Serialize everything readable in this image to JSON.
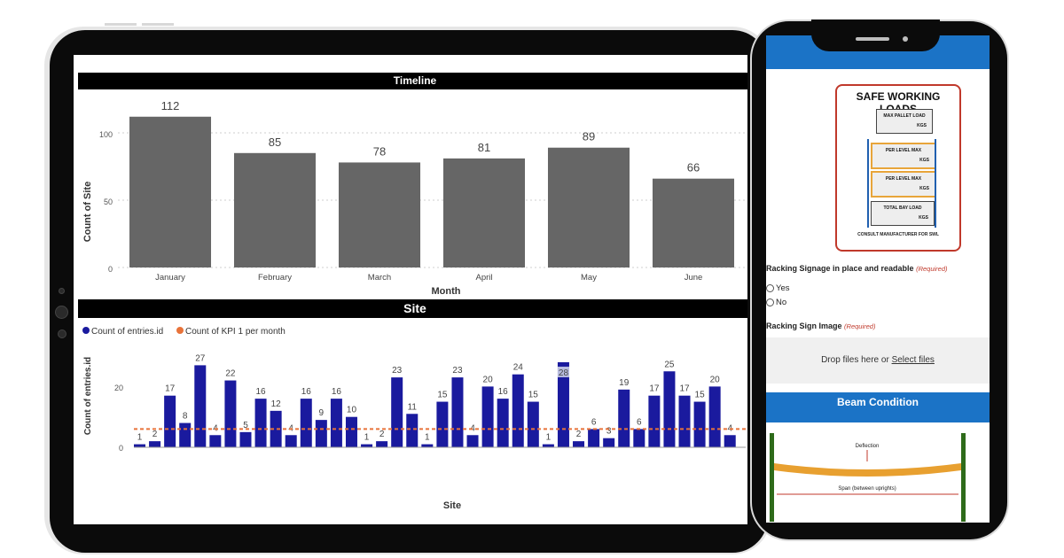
{
  "timeline": {
    "title": "Timeline",
    "xlabel": "Month",
    "ylabel": "Count of Site",
    "y_ticks": [
      "100",
      "50",
      "0"
    ]
  },
  "site": {
    "title": "Site",
    "legend": [
      "Count of entries.id",
      "Count of KPI 1 per month"
    ],
    "xlabel": "Site",
    "ylabel": "Count of entries.id",
    "y_ticks": [
      "20",
      "0"
    ]
  },
  "chart_data": [
    {
      "type": "bar",
      "title": "Timeline",
      "xlabel": "Month",
      "ylabel": "Count of Site",
      "categories": [
        "January",
        "February",
        "March",
        "April",
        "May",
        "June"
      ],
      "values": [
        112,
        85,
        78,
        81,
        89,
        66
      ],
      "ylim": [
        0,
        125
      ],
      "bar_color": "#666666",
      "grid": true
    },
    {
      "type": "bar",
      "title": "Site",
      "xlabel": "Site",
      "ylabel": "Count of entries.id",
      "legend_position": "top-left",
      "series": [
        {
          "name": "Count of entries.id",
          "color": "#1a1a9e",
          "values": [
            1,
            2,
            17,
            8,
            27,
            4,
            22,
            5,
            16,
            12,
            4,
            16,
            9,
            16,
            10,
            1,
            2,
            23,
            11,
            1,
            15,
            23,
            4,
            20,
            16,
            24,
            15,
            1,
            28,
            2,
            6,
            3,
            19,
            6,
            17,
            25,
            17,
            15,
            20,
            4
          ]
        },
        {
          "name": "Count of KPI 1 per month",
          "color": "#e8733a",
          "constant": 6
        }
      ],
      "ylim": [
        0,
        30
      ],
      "highlighted_index": 28
    }
  ],
  "phone": {
    "sign": {
      "title": "SAFE WORKING LOADS",
      "box1": "MAX PALLET LOAD",
      "box2": "PER LEVEL MAX",
      "box3": "PER LEVEL MAX",
      "box4": "TOTAL BAY LOAD",
      "unit": "KGS",
      "footer": "CONSULT MANUFACTURER FOR SWL"
    },
    "q1": {
      "label": "Racking Signage in place and readable",
      "req": "(Required)"
    },
    "options": [
      "Yes",
      "No"
    ],
    "q2": {
      "label": "Racking Sign Image",
      "req": "(Required)"
    },
    "dropzone": {
      "text": "Drop files here or ",
      "link": "Select files"
    },
    "beam": {
      "title": "Beam Condition",
      "deflection": "Deflection",
      "span": "Span (between uprights)"
    }
  },
  "colors": {
    "accent": "#1b73c6",
    "bar_gray": "#666666",
    "bar_blue": "#1a1a9e",
    "kpi_orange": "#e8733a"
  }
}
